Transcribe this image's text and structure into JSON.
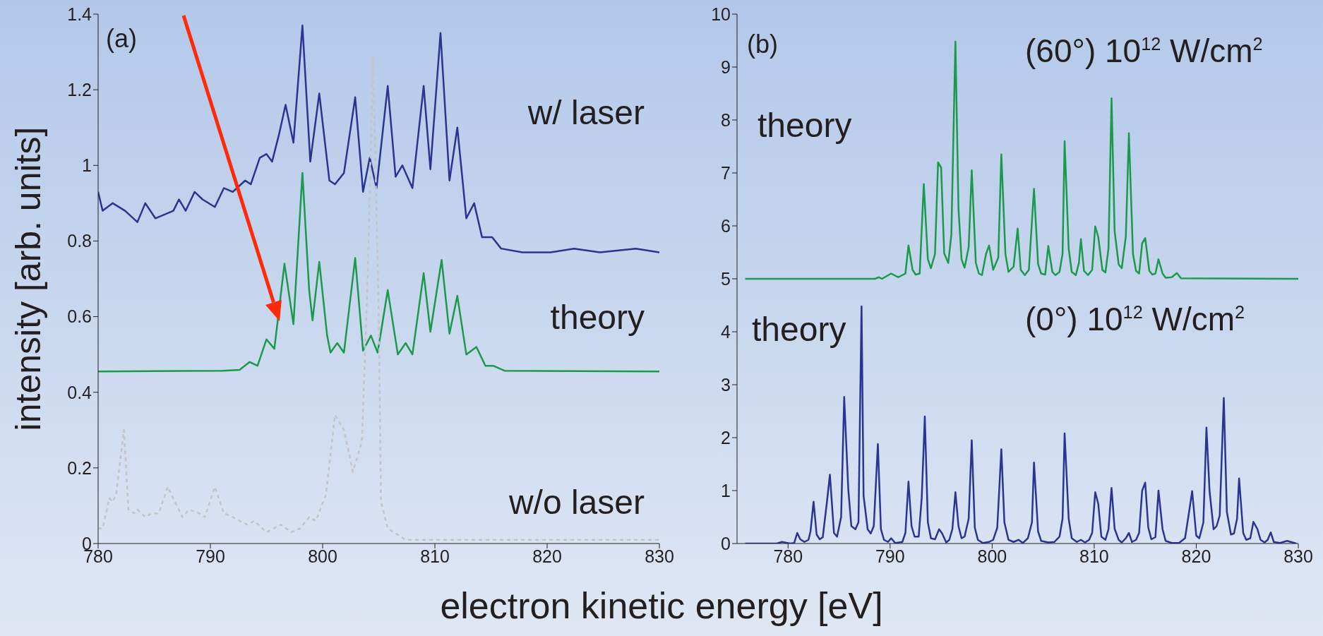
{
  "chart_data": [
    {
      "type": "line",
      "xlabel": "electron kinetic energy [eV]",
      "ylabel": "intensity [arb. units]",
      "xlim": [
        780,
        830
      ],
      "xticks": [
        780,
        790,
        800,
        810,
        820,
        830
      ],
      "ylim": [
        0,
        1.4
      ],
      "yticks": [
        0,
        0.2,
        0.4,
        0.6,
        0.8,
        1,
        1.2,
        1.4
      ],
      "grid": false,
      "legend": false,
      "annotations": [
        "(a)"
      ],
      "series": [
        {
          "name": "w/ laser",
          "color": "#2b3492",
          "x": [
            780,
            780.4,
            781.3,
            782.4,
            783.5,
            784.2,
            785.1,
            786.7,
            787.2,
            787.8,
            788.6,
            789.3,
            790.4,
            791.2,
            792.0,
            793.1,
            793.6,
            794.4,
            795.0,
            795.5,
            796.1,
            796.7,
            797.4,
            798.2,
            798.9,
            799.7,
            800.6,
            801.1,
            801.9,
            802.9,
            803.6,
            804.2,
            804.8,
            805.8,
            806.5,
            807.1,
            808.0,
            809.0,
            809.6,
            810.5,
            811.3,
            812.0,
            812.8,
            813.5,
            814.2,
            815.1,
            815.9,
            817.8,
            820.3,
            822.4,
            824.7,
            827.9,
            830
          ],
          "values": [
            0.93,
            0.88,
            0.9,
            0.88,
            0.85,
            0.9,
            0.86,
            0.88,
            0.91,
            0.88,
            0.93,
            0.91,
            0.89,
            0.94,
            0.93,
            0.96,
            0.95,
            1.02,
            1.03,
            1.01,
            1.08,
            1.16,
            1.06,
            1.37,
            1.01,
            1.19,
            0.96,
            0.95,
            0.98,
            1.18,
            0.93,
            1.02,
            0.94,
            1.21,
            0.97,
            1.0,
            0.94,
            1.21,
            0.99,
            1.35,
            0.96,
            1.1,
            0.86,
            0.9,
            0.81,
            0.81,
            0.78,
            0.77,
            0.77,
            0.78,
            0.77,
            0.78,
            0.77
          ]
        },
        {
          "name": "theory",
          "color": "#1a9a4a",
          "x": [
            780,
            791.1,
            792.6,
            793.5,
            794.2,
            795.0,
            795.7,
            796.6,
            797.4,
            798.2,
            798.8,
            799.1,
            799.7,
            800.4,
            800.7,
            801.3,
            801.9,
            802.9,
            803.6,
            804.3,
            804.9,
            805.8,
            806.7,
            807.4,
            808.0,
            809.0,
            809.6,
            810.6,
            811.3,
            812.0,
            812.8,
            813.7,
            814.5,
            815.2,
            816.2,
            830
          ],
          "values": [
            0.455,
            0.457,
            0.459,
            0.48,
            0.47,
            0.54,
            0.515,
            0.74,
            0.58,
            0.98,
            0.67,
            0.59,
            0.745,
            0.55,
            0.505,
            0.53,
            0.505,
            0.755,
            0.51,
            0.55,
            0.505,
            0.67,
            0.5,
            0.53,
            0.5,
            0.715,
            0.56,
            0.75,
            0.555,
            0.655,
            0.5,
            0.52,
            0.47,
            0.47,
            0.457,
            0.455
          ]
        },
        {
          "name": "w/o laser",
          "color": "#c4c4c4",
          "line_style": "dashed",
          "x": [
            780,
            780.4,
            781.0,
            781.3,
            781.6,
            782.3,
            782.7,
            783.2,
            783.5,
            784.2,
            784.8,
            785.4,
            786.2,
            787.5,
            788.1,
            789.0,
            789.5,
            790.4,
            791.2,
            792.0,
            792.6,
            793.3,
            793.9,
            795.0,
            796.3,
            797.2,
            798.0,
            798.8,
            799.4,
            800.3,
            801.1,
            801.9,
            802.7,
            803.5,
            804.0,
            804.5,
            805.0,
            805.2,
            805.8,
            807.4,
            809.0,
            812.1,
            830
          ],
          "values": [
            0.04,
            0.04,
            0.12,
            0.11,
            0.13,
            0.3,
            0.09,
            0.08,
            0.09,
            0.07,
            0.08,
            0.08,
            0.15,
            0.07,
            0.09,
            0.08,
            0.07,
            0.15,
            0.08,
            0.07,
            0.06,
            0.05,
            0.06,
            0.03,
            0.05,
            0.03,
            0.04,
            0.07,
            0.06,
            0.13,
            0.34,
            0.3,
            0.19,
            0.27,
            0.69,
            1.29,
            0.6,
            0.11,
            0.04,
            0.01,
            0.01,
            0.01,
            0.01
          ]
        }
      ]
    },
    {
      "type": "line",
      "xlim": [
        775,
        830
      ],
      "xticks": [
        780,
        790,
        800,
        810,
        820,
        830
      ],
      "ylim": [
        0,
        10
      ],
      "yticks": [
        0,
        1,
        2,
        3,
        4,
        5,
        6,
        7,
        8,
        9,
        10
      ],
      "grid": false,
      "legend": false,
      "annotations": [
        "(b)",
        "(60°) 10$^{12}$ W/cm$^{2}$",
        "(0°) 10$^{12}$ W/cm$^{2}$"
      ],
      "series": [
        {
          "name": "theory",
          "color": "#1a9a4a",
          "x": [
            775.8,
            788.5,
            788.9,
            789.2,
            790.1,
            790.8,
            791.5,
            791.8,
            792.2,
            792.5,
            792.9,
            793.3,
            793.7,
            794.0,
            794.4,
            794.7,
            795.0,
            795.3,
            795.7,
            796.0,
            796.4,
            796.7,
            797.0,
            797.3,
            797.7,
            798.0,
            798.4,
            798.7,
            799.0,
            799.4,
            799.7,
            800.1,
            800.6,
            800.9,
            801.3,
            801.6,
            802.1,
            802.5,
            802.8,
            803.2,
            803.6,
            804.1,
            804.5,
            804.8,
            805.2,
            805.5,
            805.9,
            806.2,
            806.6,
            806.9,
            807.1,
            807.5,
            807.8,
            808.2,
            808.5,
            808.7,
            809.0,
            809.4,
            809.8,
            810.1,
            810.4,
            810.8,
            811.1,
            811.4,
            811.7,
            812.0,
            812.4,
            812.7,
            813.1,
            813.4,
            813.8,
            814.1,
            814.4,
            814.7,
            815.0,
            815.4,
            815.7,
            816.0,
            816.3,
            816.7,
            817.0,
            817.6,
            818.1,
            818.5,
            830
          ],
          "values": [
            5.0,
            5.0,
            5.03,
            5.0,
            5.1,
            5.03,
            5.1,
            5.63,
            5.17,
            5.08,
            5.1,
            6.79,
            5.37,
            5.2,
            5.47,
            7.2,
            7.1,
            5.48,
            5.3,
            5.83,
            9.48,
            6.33,
            5.37,
            5.21,
            5.6,
            7.05,
            5.3,
            5.1,
            5.07,
            5.47,
            5.63,
            5.17,
            5.4,
            7.35,
            5.47,
            5.13,
            5.23,
            5.95,
            5.17,
            5.07,
            5.17,
            6.7,
            5.28,
            5.1,
            5.08,
            5.62,
            5.13,
            5.07,
            5.13,
            5.47,
            7.6,
            5.57,
            5.13,
            5.07,
            5.3,
            5.75,
            5.15,
            5.07,
            5.17,
            5.99,
            5.79,
            5.17,
            5.12,
            5.57,
            8.41,
            5.9,
            5.27,
            5.2,
            5.8,
            7.75,
            5.47,
            5.15,
            5.1,
            5.67,
            5.77,
            5.15,
            5.08,
            5.1,
            5.37,
            5.1,
            5.02,
            5.03,
            5.11,
            5.01,
            5.0
          ]
        },
        {
          "name": "theory",
          "color": "#2b3492",
          "x": [
            775.8,
            778.9,
            779.4,
            780.2,
            780.6,
            780.9,
            781.2,
            781.6,
            782.0,
            782.2,
            782.5,
            782.8,
            783.1,
            783.4,
            783.8,
            784.1,
            784.5,
            784.8,
            785.2,
            785.5,
            785.9,
            786.2,
            786.6,
            786.9,
            787.2,
            787.4,
            787.8,
            788.1,
            788.4,
            788.8,
            789.1,
            789.4,
            789.8,
            790.1,
            790.5,
            791.2,
            791.5,
            791.8,
            792.1,
            792.4,
            792.8,
            793.1,
            793.4,
            793.7,
            794.0,
            794.4,
            794.8,
            795.1,
            795.5,
            795.8,
            796.1,
            796.4,
            796.7,
            797.0,
            797.3,
            797.7,
            798.0,
            798.3,
            798.6,
            799.1,
            799.7,
            800.1,
            800.5,
            800.9,
            801.2,
            801.6,
            802.1,
            802.6,
            803.0,
            803.5,
            803.9,
            804.1,
            804.5,
            804.8,
            805.5,
            806.1,
            806.6,
            806.9,
            807.1,
            807.5,
            807.8,
            808.3,
            808.7,
            809.1,
            809.5,
            809.8,
            810.1,
            810.4,
            810.7,
            811.1,
            811.4,
            811.7,
            812.0,
            812.4,
            812.7,
            813.1,
            813.4,
            813.7,
            814.1,
            814.4,
            814.7,
            815.0,
            815.3,
            815.6,
            816.0,
            816.3,
            816.7,
            817.0,
            817.6,
            818.3,
            818.9,
            819.3,
            819.6,
            820.0,
            820.3,
            820.7,
            821.0,
            821.3,
            821.7,
            822.0,
            822.3,
            822.7,
            823.0,
            823.4,
            823.7,
            824.0,
            824.2,
            824.6,
            824.9,
            825.3,
            825.6,
            826.0,
            826.3,
            826.7,
            827.0,
            827.3,
            827.6,
            828.2,
            828.9,
            829.8
          ],
          "values": [
            0,
            0,
            0.03,
            0,
            0.01,
            0.2,
            0.08,
            0.03,
            0.07,
            0.23,
            0.79,
            0.17,
            0.08,
            0.12,
            0.77,
            1.3,
            0.2,
            0.13,
            0.5,
            2.77,
            1.03,
            0.33,
            0.27,
            0.4,
            4.48,
            0.9,
            0.27,
            0.19,
            0.33,
            1.88,
            0.27,
            0.07,
            0.03,
            0.1,
            0.01,
            0.03,
            0.2,
            1.17,
            0.33,
            0.13,
            0.13,
            0.87,
            2.4,
            0.4,
            0.1,
            0.08,
            0.27,
            0.19,
            0.02,
            0.07,
            0.27,
            0.97,
            0.33,
            0.1,
            0.13,
            0.47,
            1.95,
            0.3,
            0.07,
            0.01,
            0.03,
            0.07,
            0.3,
            1.78,
            0.4,
            0.07,
            0.03,
            0.07,
            0.01,
            0.1,
            0.4,
            1.53,
            0.23,
            0.05,
            0.02,
            0.03,
            0.13,
            0.47,
            2.08,
            0.47,
            0.1,
            0.03,
            0.07,
            0.02,
            0.07,
            0.2,
            0.97,
            0.75,
            0.13,
            0.07,
            0.27,
            1.05,
            0.28,
            0.07,
            0.02,
            0.1,
            0.2,
            0.03,
            0.07,
            0.2,
            1.0,
            1.15,
            0.3,
            0.08,
            0.12,
            1.0,
            0.27,
            0.05,
            0.01,
            0.01,
            0.1,
            0.6,
            0.99,
            0.15,
            0.1,
            0.4,
            2.19,
            1.0,
            0.27,
            0.33,
            0.53,
            2.75,
            0.6,
            0.17,
            0.19,
            0.47,
            1.23,
            0.2,
            0.07,
            0.1,
            0.41,
            0.27,
            0.07,
            0.02,
            0.07,
            0.21,
            0.03,
            0.01,
            0.05,
            0
          ]
        }
      ]
    }
  ]
}
